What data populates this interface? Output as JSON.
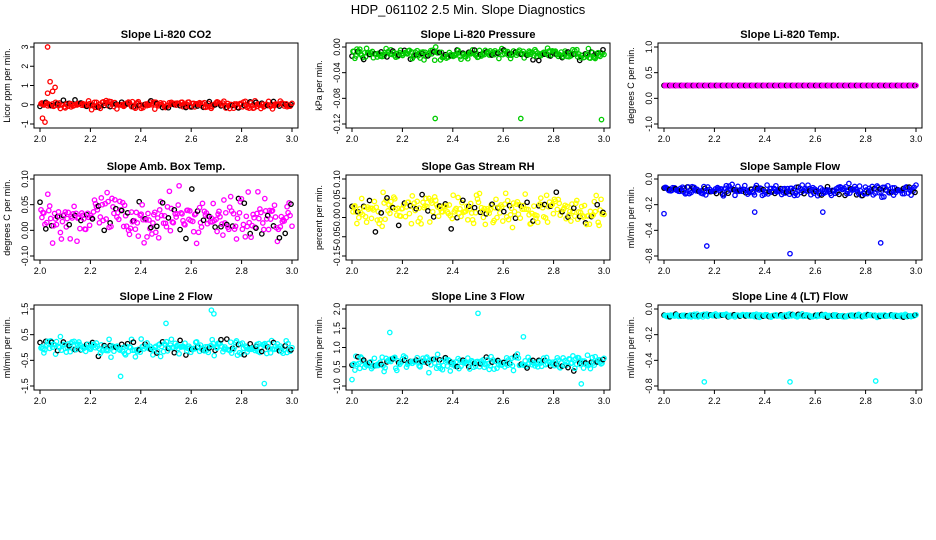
{
  "title": "HDP_061102  2.5 Min. Slope Diagnostics",
  "chart_data": [
    {
      "type": "scatter",
      "title": "Slope Li-820 CO2",
      "ylabel": "Licor ppm per min.",
      "xlim": [
        2.0,
        3.0
      ],
      "ylim": [
        -1.0,
        3.0
      ],
      "xticks": [
        "2.0",
        "2.2",
        "2.4",
        "2.6",
        "2.8",
        "3.0"
      ],
      "yticks": [
        "-1",
        "0",
        "1",
        "2",
        "3"
      ],
      "color": "#ff0000",
      "spread": 0.15,
      "center": 0.0,
      "outliers": [
        [
          2.03,
          3.0
        ],
        [
          2.04,
          1.2
        ],
        [
          2.06,
          0.9
        ],
        [
          2.01,
          -0.7
        ],
        [
          2.02,
          -0.9
        ],
        [
          2.03,
          0.6
        ],
        [
          2.05,
          0.7
        ]
      ]
    },
    {
      "type": "scatter",
      "title": "Slope Li-820 Pressure",
      "ylabel": "kPa per min.",
      "xlim": [
        2.0,
        3.0
      ],
      "ylim": [
        -0.13,
        0.01
      ],
      "xticks": [
        "2.0",
        "2.2",
        "2.4",
        "2.6",
        "2.8",
        "3.0"
      ],
      "yticks": [
        "-0.12",
        "-0.08",
        "-0.04",
        "0.00"
      ],
      "color": "#00cc00",
      "spread": 0.008,
      "center": -0.003,
      "outliers": [
        [
          2.33,
          -0.12
        ],
        [
          2.67,
          -0.12
        ],
        [
          2.99,
          -0.122
        ]
      ]
    },
    {
      "type": "scatter",
      "title": "Slope Li-820 Temp.",
      "ylabel": "degrees C per min.",
      "xlim": [
        2.0,
        3.0
      ],
      "ylim": [
        -1.0,
        1.0
      ],
      "xticks": [
        "2.0",
        "2.2",
        "2.4",
        "2.6",
        "2.8",
        "3.0"
      ],
      "yticks": [
        "-1.0",
        "0.0",
        "0.5",
        "1.0"
      ],
      "color": "#ff00ff",
      "spread": 0.0,
      "center": 0.0,
      "dense_line": true,
      "outliers": []
    },
    {
      "type": "scatter",
      "title": "Slope Amb. Box Temp.",
      "ylabel": "degrees C per min.",
      "xlim": [
        2.0,
        3.0
      ],
      "ylim": [
        -0.1,
        0.1
      ],
      "xticks": [
        "2.0",
        "2.2",
        "2.4",
        "2.6",
        "2.8",
        "3.0"
      ],
      "yticks": [
        "-0.10",
        "0.00",
        "0.05",
        "0.10"
      ],
      "color": "#ff00ff",
      "spread": 0.05,
      "center": 0.0,
      "outliers": []
    },
    {
      "type": "scatter",
      "title": "Slope Gas Stream RH",
      "ylabel": "percent per min.",
      "xlim": [
        2.0,
        3.0
      ],
      "ylim": [
        -0.15,
        0.1
      ],
      "xticks": [
        "2.0",
        "2.2",
        "2.4",
        "2.6",
        "2.8",
        "3.0"
      ],
      "yticks": [
        "-0.15",
        "-0.05",
        "0.00",
        "0.05",
        "0.10"
      ],
      "color": "#ffff00",
      "spread": 0.045,
      "center": 0.0,
      "outliers": []
    },
    {
      "type": "scatter",
      "title": "Slope Sample Flow",
      "ylabel": "ml/min per min.",
      "xlim": [
        2.0,
        3.0
      ],
      "ylim": [
        -0.85,
        0.15
      ],
      "xticks": [
        "2.0",
        "2.2",
        "2.4",
        "2.6",
        "2.8",
        "3.0"
      ],
      "yticks": [
        "-0.8",
        "-0.4",
        "-0.2",
        "0.0"
      ],
      "color": "#0000ff",
      "spread": 0.06,
      "center": 0.0,
      "outliers": [
        [
          2.17,
          -0.72
        ],
        [
          2.5,
          -0.82
        ],
        [
          2.86,
          -0.68
        ],
        [
          2.0,
          -0.3
        ],
        [
          2.36,
          -0.28
        ],
        [
          2.63,
          -0.28
        ]
      ]
    },
    {
      "type": "scatter",
      "title": "Slope Line 2 Flow",
      "ylabel": "ml/min per min.",
      "xlim": [
        2.0,
        3.0
      ],
      "ylim": [
        -1.6,
        1.6
      ],
      "xticks": [
        "2.0",
        "2.2",
        "2.4",
        "2.6",
        "2.8",
        "3.0"
      ],
      "yticks": [
        "-1.5",
        "-0.5",
        "0.5",
        "1.5"
      ],
      "color": "#00ffff",
      "spread": 0.3,
      "center": 0.0,
      "outliers": [
        [
          2.68,
          1.55
        ],
        [
          2.69,
          1.4
        ],
        [
          2.5,
          1.0
        ],
        [
          2.89,
          -1.5
        ],
        [
          2.32,
          -1.2
        ]
      ]
    },
    {
      "type": "scatter",
      "title": "Slope Line 3 Flow",
      "ylabel": "ml/min per min.",
      "xlim": [
        2.0,
        3.0
      ],
      "ylim": [
        -1.3,
        2.3
      ],
      "xticks": [
        "2.0",
        "2.2",
        "2.4",
        "2.6",
        "2.8",
        "3.0"
      ],
      "yticks": [
        "-1.0",
        "0.5",
        "1.0",
        "1.5",
        "2.0"
      ],
      "color": "#00ffff",
      "spread": 0.3,
      "center": -0.2,
      "outliers": [
        [
          2.5,
          2.1
        ],
        [
          2.15,
          1.2
        ],
        [
          2.68,
          1.0
        ],
        [
          2.91,
          -1.2
        ],
        [
          2.0,
          -1.0
        ]
      ]
    },
    {
      "type": "scatter",
      "title": "Slope Line 4 (LT) Flow",
      "ylabel": "ml/min per min.",
      "xlim": [
        2.0,
        3.0
      ],
      "ylim": [
        -0.85,
        0.08
      ],
      "xticks": [
        "2.0",
        "2.2",
        "2.4",
        "2.6",
        "2.8",
        "3.0"
      ],
      "yticks": [
        "-0.8",
        "-0.4",
        "-0.2",
        "0.0"
      ],
      "color": "#00ffff",
      "spread": 0.015,
      "center": 0.0,
      "outliers": [
        [
          2.16,
          -0.8
        ],
        [
          2.5,
          -0.8
        ],
        [
          2.84,
          -0.79
        ]
      ]
    }
  ]
}
